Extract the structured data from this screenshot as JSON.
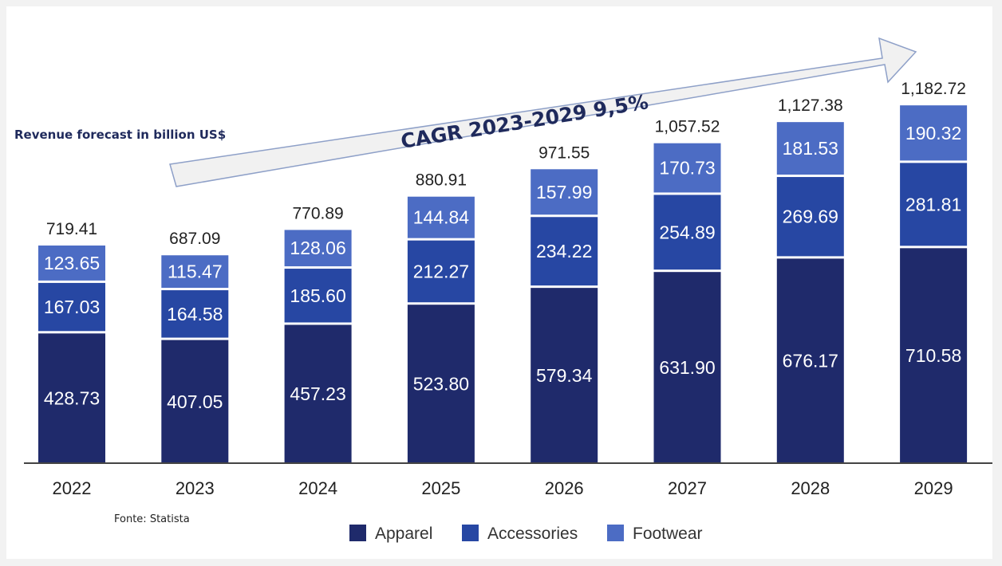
{
  "chart_data": {
    "type": "bar",
    "stacked": true,
    "subtitle": "Revenue forecast in billion US$",
    "annotation": "CAGR 2023-2029  9,5%",
    "source": "Fonte: Statista",
    "categories": [
      "2022",
      "2023",
      "2024",
      "2025",
      "2026",
      "2027",
      "2028",
      "2029"
    ],
    "totals": [
      "719.41",
      "687.09",
      "770.89",
      "880.91",
      "971.55",
      "1,057.52",
      "1,127.38",
      "1,182.72"
    ],
    "series": [
      {
        "name": "Apparel",
        "color": "#1f2a6b",
        "values": [
          428.73,
          407.05,
          457.23,
          523.8,
          579.34,
          631.9,
          676.17,
          710.58
        ],
        "labels": [
          "428.73",
          "407.05",
          "457.23",
          "523.80",
          "579.34",
          "631.90",
          "676.17",
          "710.58"
        ]
      },
      {
        "name": "Accessories",
        "color": "#2747a3",
        "values": [
          167.03,
          164.58,
          185.6,
          212.27,
          234.22,
          254.89,
          269.69,
          281.81
        ],
        "labels": [
          "167.03",
          "164.58",
          "185.60",
          "212.27",
          "234.22",
          "254.89",
          "269.69",
          "281.81"
        ]
      },
      {
        "name": "Footwear",
        "color": "#4c6cc4",
        "values": [
          123.65,
          115.47,
          128.06,
          144.84,
          157.99,
          170.73,
          181.53,
          190.32
        ],
        "labels": [
          "123.65",
          "115.47",
          "128.06",
          "144.84",
          "157.99",
          "170.73",
          "181.53",
          "190.32"
        ]
      }
    ],
    "legend_position": "bottom",
    "grid": false
  }
}
